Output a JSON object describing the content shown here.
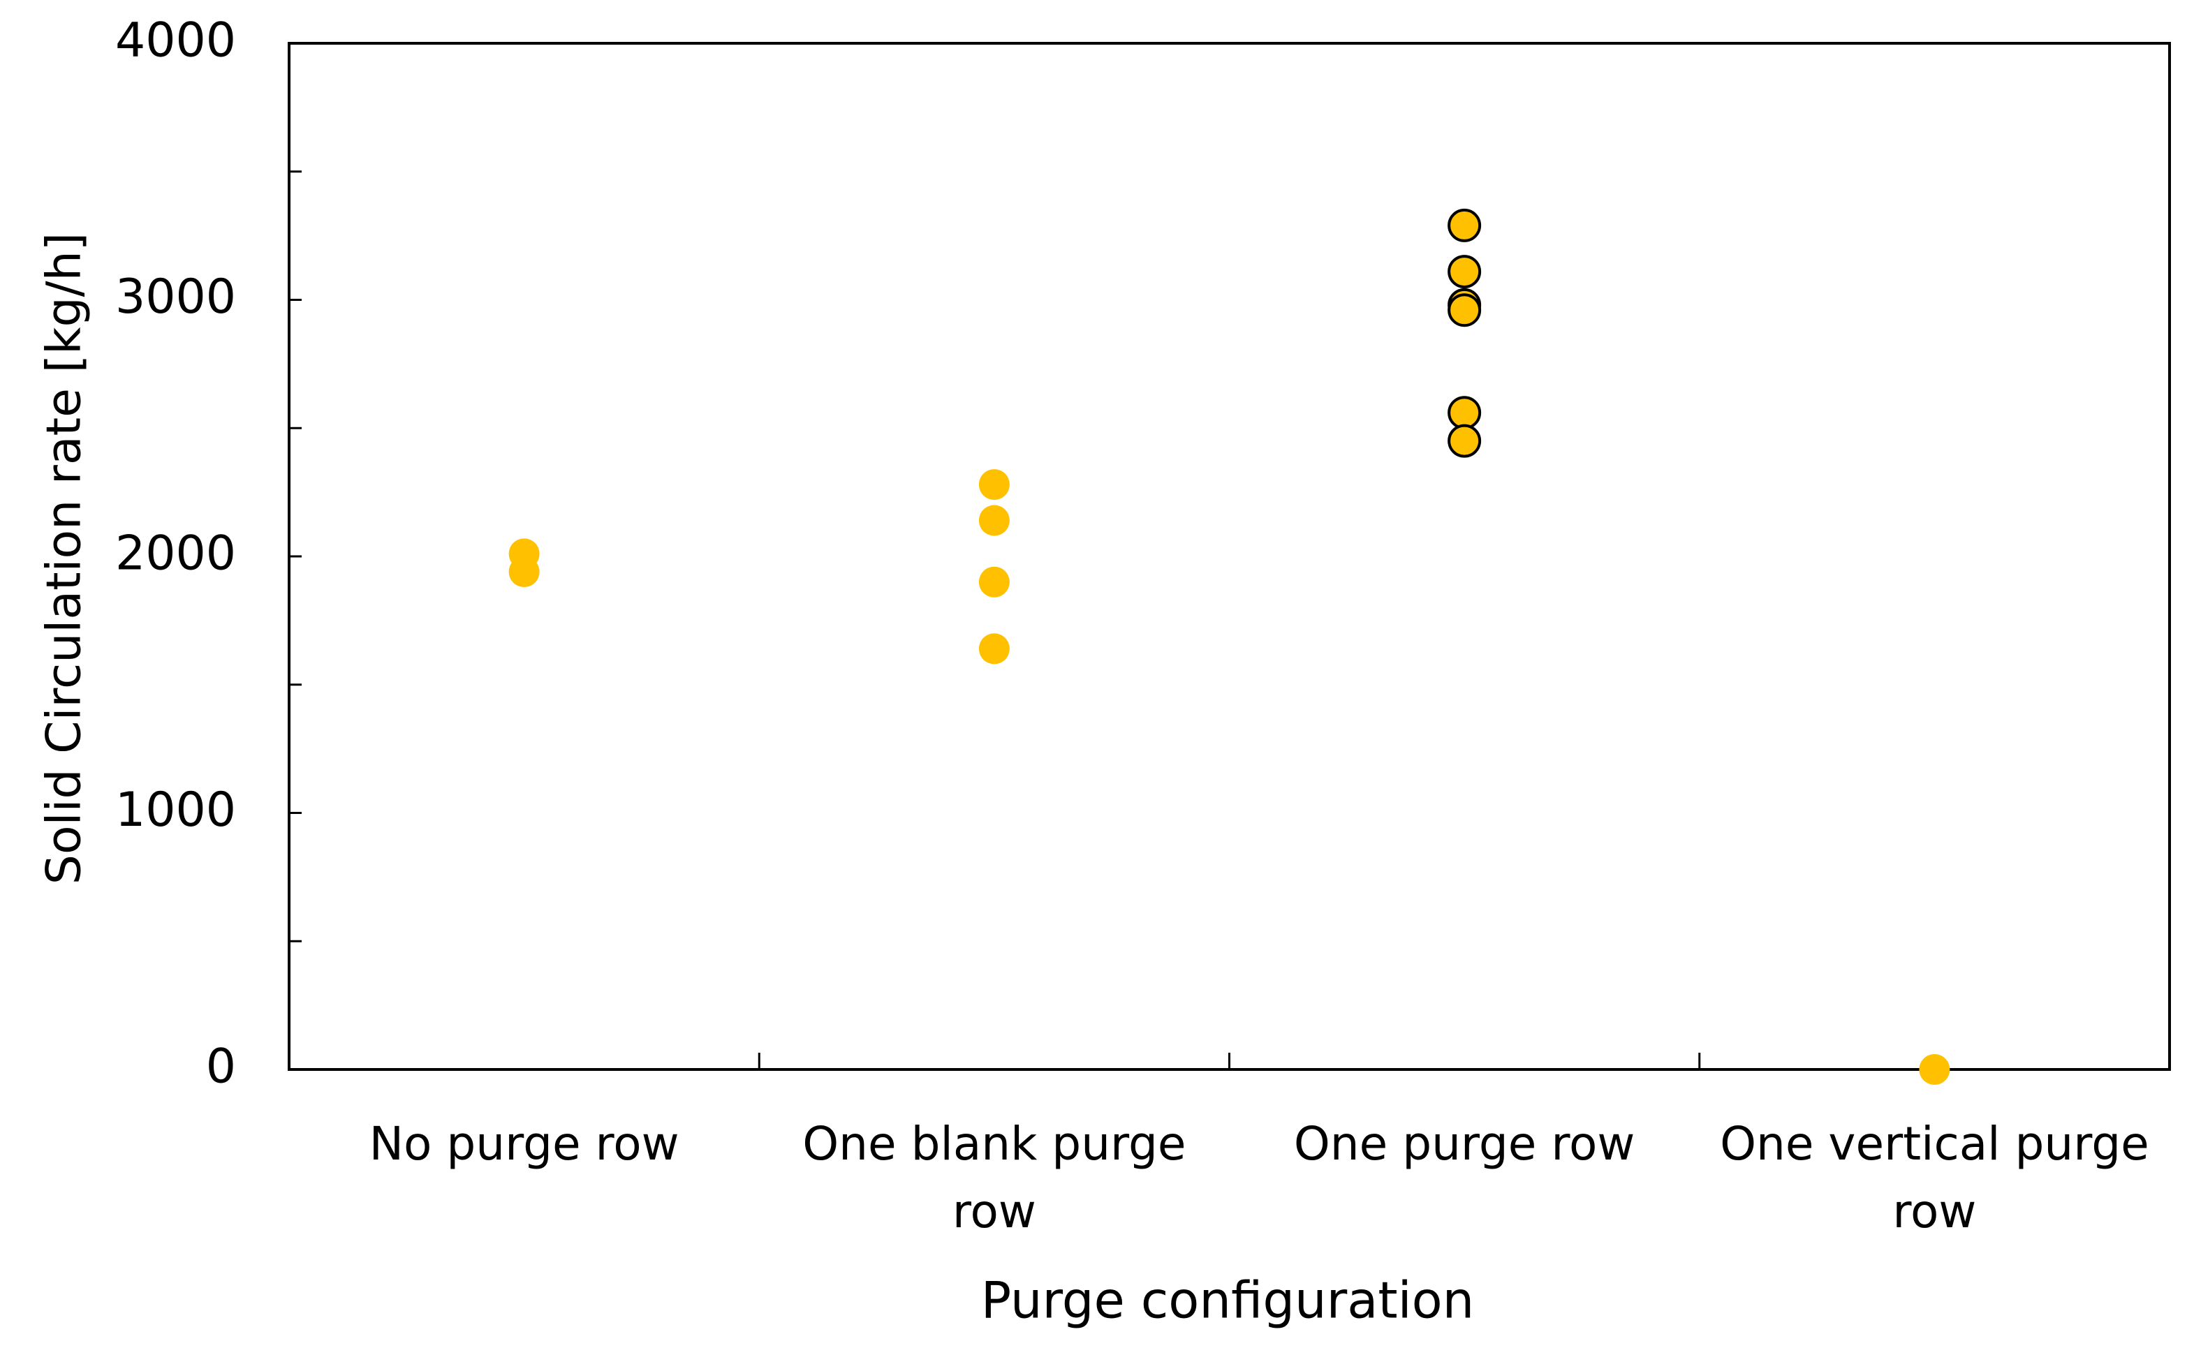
{
  "chart_data": {
    "type": "strip",
    "x_label": "Purge configuration",
    "y_label": "Solid Circulation rate [kg/h]",
    "categories": [
      "No purge row",
      "One blank purge row",
      "One purge row",
      "One vertical purge row"
    ],
    "values": [
      [
        2010,
        1940
      ],
      [
        2280,
        2140,
        1900,
        1640
      ],
      [
        3290,
        3110,
        2980,
        2960,
        2560,
        2450
      ],
      [
        0
      ]
    ],
    "color": "#ffc000",
    "edgecolors": [
      null,
      null,
      "#000000",
      null
    ],
    "ylim": [
      0,
      4000
    ],
    "yticks": [
      0,
      1000,
      2000,
      3000,
      4000
    ],
    "minor_yticks": [
      500,
      1500,
      2500,
      3500
    ],
    "grid": false
  }
}
